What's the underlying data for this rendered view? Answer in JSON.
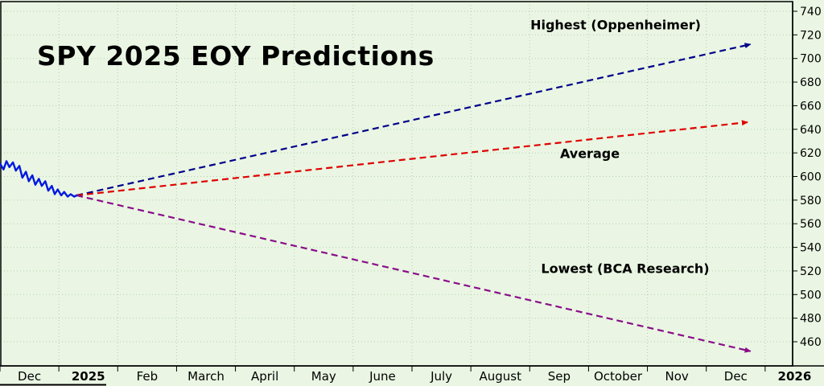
{
  "chart_data": {
    "type": "line",
    "title": "SPY 2025 EOY Predictions",
    "xlabel": "",
    "ylabel": "",
    "grid": true,
    "legend_position": "none",
    "colors": {
      "background": "#eaf6e3",
      "grid": "#b2cfae",
      "axis": "#000000",
      "text": "#000000"
    },
    "x_axis": {
      "labels": [
        {
          "text": "Dec",
          "bold": false
        },
        {
          "text": "2025",
          "bold": true
        },
        {
          "text": "Feb",
          "bold": false
        },
        {
          "text": "March",
          "bold": false
        },
        {
          "text": "April",
          "bold": false
        },
        {
          "text": "May",
          "bold": false
        },
        {
          "text": "June",
          "bold": false
        },
        {
          "text": "July",
          "bold": false
        },
        {
          "text": "August",
          "bold": false
        },
        {
          "text": "Sep",
          "bold": false
        },
        {
          "text": "October",
          "bold": false
        },
        {
          "text": "Nov",
          "bold": false
        },
        {
          "text": "Dec",
          "bold": false
        },
        {
          "text": "2026",
          "bold": true
        }
      ]
    },
    "y_axis": {
      "min": 460,
      "max": 740,
      "step": 20,
      "ticks": [
        740,
        720,
        700,
        680,
        660,
        640,
        620,
        600,
        580,
        560,
        540,
        520,
        500,
        480,
        460
      ]
    },
    "price_series": {
      "name": "price",
      "color": "#0018e0",
      "points": [
        [
          0.0,
          611
        ],
        [
          0.06,
          606
        ],
        [
          0.11,
          613
        ],
        [
          0.16,
          608
        ],
        [
          0.22,
          612
        ],
        [
          0.27,
          605
        ],
        [
          0.33,
          609
        ],
        [
          0.38,
          599
        ],
        [
          0.44,
          604
        ],
        [
          0.49,
          596
        ],
        [
          0.55,
          601
        ],
        [
          0.6,
          593
        ],
        [
          0.66,
          598
        ],
        [
          0.71,
          592
        ],
        [
          0.77,
          596
        ],
        [
          0.82,
          588
        ],
        [
          0.88,
          592
        ],
        [
          0.93,
          585
        ],
        [
          0.98,
          589
        ],
        [
          1.04,
          584
        ],
        [
          1.09,
          587
        ],
        [
          1.15,
          583
        ],
        [
          1.2,
          585
        ],
        [
          1.26,
          583
        ],
        [
          1.3,
          584
        ]
      ]
    },
    "projections": [
      {
        "name": "highest",
        "label": "Highest (Oppenheimer)",
        "color": "#00008b",
        "from": [
          1.3,
          584
        ],
        "to": [
          12.75,
          712
        ]
      },
      {
        "name": "average",
        "label": "Average",
        "color": "#e00000",
        "from": [
          1.3,
          584
        ],
        "to": [
          12.7,
          646
        ]
      },
      {
        "name": "lowest",
        "label": "Lowest (BCA Research)",
        "color": "#8a0d8a",
        "from": [
          1.3,
          584
        ],
        "to": [
          12.75,
          452
        ]
      }
    ]
  }
}
